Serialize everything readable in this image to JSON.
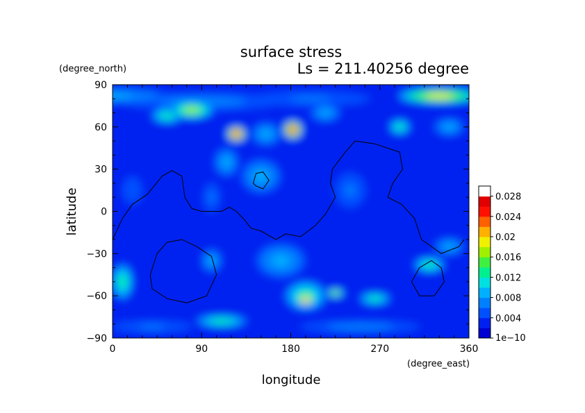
{
  "chart_data": {
    "type": "heatmap",
    "title": "surface stress",
    "subtitle": "Ls = 211.40256 degree",
    "xlabel": "longitude",
    "ylabel": "latitude",
    "x_unit": "(degree_east)",
    "y_unit": "(degree_north)",
    "xlim": [
      0,
      360
    ],
    "ylim": [
      -90,
      90
    ],
    "x_ticks": [
      {
        "value": 0,
        "label": "0"
      },
      {
        "value": 90,
        "label": "90"
      },
      {
        "value": 180,
        "label": "180"
      },
      {
        "value": 270,
        "label": "270"
      },
      {
        "value": 360,
        "label": "360"
      }
    ],
    "y_ticks": [
      {
        "value": 90,
        "label": "90"
      },
      {
        "value": 60,
        "label": "60"
      },
      {
        "value": 30,
        "label": "30"
      },
      {
        "value": 0,
        "label": "0"
      },
      {
        "value": -30,
        "label": "−30"
      },
      {
        "value": -60,
        "label": "−60"
      },
      {
        "value": -90,
        "label": "−90"
      }
    ],
    "colorbar": {
      "min": 0,
      "max": 0.03,
      "labels": [
        "1e−10",
        "0.004",
        "0.008",
        "0.012",
        "0.016",
        "0.02",
        "0.024",
        "0.028"
      ],
      "label_values": [
        0,
        0.004,
        0.008,
        0.012,
        0.016,
        0.02,
        0.024,
        0.028
      ],
      "colors": [
        "#0000d0",
        "#0020f0",
        "#0050ff",
        "#0080ff",
        "#00b0ff",
        "#00e0e0",
        "#00f090",
        "#40f040",
        "#a0f000",
        "#f0f000",
        "#ffb000",
        "#ff6000",
        "#ff1000",
        "#e00000",
        "#ffffff"
      ]
    },
    "field": {
      "background": 0.003,
      "blobs": [
        {
          "lon": 0,
          "lat": 82,
          "rlon": 60,
          "rlat": 5,
          "v": 0.008
        },
        {
          "lon": 90,
          "lat": 78,
          "rlon": 80,
          "rlat": 6,
          "v": 0.007
        },
        {
          "lon": 200,
          "lat": 80,
          "rlon": 60,
          "rlat": 5,
          "v": 0.006
        },
        {
          "lon": 330,
          "lat": 82,
          "rlon": 40,
          "rlat": 5,
          "v": 0.018
        },
        {
          "lon": 80,
          "lat": 72,
          "rlon": 22,
          "rlat": 6,
          "v": 0.016
        },
        {
          "lon": 55,
          "lat": 68,
          "rlon": 15,
          "rlat": 5,
          "v": 0.012
        },
        {
          "lon": 125,
          "lat": 55,
          "rlon": 9,
          "rlat": 5,
          "v": 0.025
        },
        {
          "lon": 182,
          "lat": 58,
          "rlon": 9,
          "rlat": 6,
          "v": 0.026
        },
        {
          "lon": 155,
          "lat": 55,
          "rlon": 15,
          "rlat": 8,
          "v": 0.009
        },
        {
          "lon": 215,
          "lat": 70,
          "rlon": 15,
          "rlat": 6,
          "v": 0.009
        },
        {
          "lon": 290,
          "lat": 60,
          "rlon": 10,
          "rlat": 5,
          "v": 0.014
        },
        {
          "lon": 340,
          "lat": 60,
          "rlon": 15,
          "rlat": 6,
          "v": 0.009
        },
        {
          "lon": 150,
          "lat": 25,
          "rlon": 20,
          "rlat": 12,
          "v": 0.008
        },
        {
          "lon": 115,
          "lat": 35,
          "rlon": 12,
          "rlat": 10,
          "v": 0.009
        },
        {
          "lon": 100,
          "lat": 10,
          "rlon": 8,
          "rlat": 10,
          "v": 0.006
        },
        {
          "lon": 240,
          "lat": 15,
          "rlon": 15,
          "rlat": 12,
          "v": 0.006
        },
        {
          "lon": 20,
          "lat": 15,
          "rlon": 12,
          "rlat": 12,
          "v": 0.005
        },
        {
          "lon": 10,
          "lat": -50,
          "rlon": 10,
          "rlat": 12,
          "v": 0.013
        },
        {
          "lon": 100,
          "lat": -35,
          "rlon": 10,
          "rlat": 8,
          "v": 0.008
        },
        {
          "lon": 170,
          "lat": -35,
          "rlon": 25,
          "rlat": 12,
          "v": 0.008
        },
        {
          "lon": 195,
          "lat": -60,
          "rlon": 20,
          "rlat": 10,
          "v": 0.013
        },
        {
          "lon": 195,
          "lat": -63,
          "rlon": 7,
          "rlat": 3,
          "v": 0.03
        },
        {
          "lon": 225,
          "lat": -58,
          "rlon": 9,
          "rlat": 3,
          "v": 0.017
        },
        {
          "lon": 265,
          "lat": -62,
          "rlon": 15,
          "rlat": 4,
          "v": 0.014
        },
        {
          "lon": 320,
          "lat": -38,
          "rlon": 15,
          "rlat": 5,
          "v": 0.014
        },
        {
          "lon": 340,
          "lat": -25,
          "rlon": 15,
          "rlat": 6,
          "v": 0.009
        },
        {
          "lon": 110,
          "lat": -78,
          "rlon": 25,
          "rlat": 4,
          "v": 0.013
        },
        {
          "lon": 250,
          "lat": -82,
          "rlon": 60,
          "rlat": 4,
          "v": 0.007
        },
        {
          "lon": 40,
          "lat": -82,
          "rlon": 40,
          "rlat": 4,
          "v": 0.006
        }
      ]
    },
    "contours": [
      [
        [
          0,
          -20
        ],
        [
          10,
          -5
        ],
        [
          20,
          5
        ],
        [
          35,
          12
        ],
        [
          50,
          25
        ],
        [
          60,
          29
        ],
        [
          70,
          25
        ],
        [
          73,
          10
        ],
        [
          80,
          2
        ],
        [
          90,
          0
        ],
        [
          110,
          0
        ],
        [
          118,
          3
        ],
        [
          125,
          0
        ],
        [
          132,
          -5
        ],
        [
          140,
          -12
        ],
        [
          150,
          -14
        ],
        [
          165,
          -20
        ],
        [
          175,
          -16
        ],
        [
          190,
          -18
        ],
        [
          205,
          -10
        ],
        [
          215,
          -2
        ],
        [
          225,
          10
        ],
        [
          220,
          20
        ],
        [
          222,
          30
        ],
        [
          235,
          42
        ],
        [
          245,
          50
        ],
        [
          265,
          48
        ],
        [
          290,
          42
        ],
        [
          293,
          30
        ],
        [
          283,
          20
        ],
        [
          278,
          10
        ],
        [
          292,
          5
        ],
        [
          305,
          -5
        ],
        [
          312,
          -20
        ],
        [
          322,
          -25
        ],
        [
          332,
          -30
        ],
        [
          350,
          -25
        ],
        [
          355,
          -20
        ]
      ],
      [
        [
          38,
          -45
        ],
        [
          45,
          -30
        ],
        [
          55,
          -22
        ],
        [
          70,
          -20
        ],
        [
          85,
          -25
        ],
        [
          100,
          -32
        ],
        [
          105,
          -45
        ],
        [
          95,
          -60
        ],
        [
          75,
          -65
        ],
        [
          55,
          -62
        ],
        [
          40,
          -55
        ],
        [
          38,
          -45
        ]
      ],
      [
        [
          142,
          20
        ],
        [
          145,
          27
        ],
        [
          152,
          28
        ],
        [
          158,
          22
        ],
        [
          152,
          16
        ],
        [
          145,
          18
        ],
        [
          142,
          20
        ]
      ],
      [
        [
          302,
          -50
        ],
        [
          310,
          -40
        ],
        [
          322,
          -35
        ],
        [
          332,
          -40
        ],
        [
          335,
          -50
        ],
        [
          325,
          -60
        ],
        [
          310,
          -60
        ],
        [
          302,
          -50
        ]
      ]
    ]
  }
}
